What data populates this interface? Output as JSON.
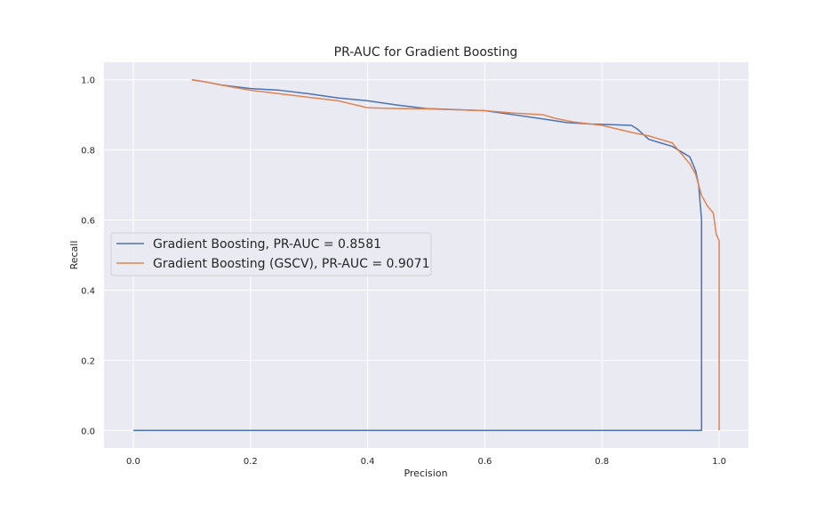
{
  "chart_data": {
    "type": "line",
    "title": "PR-AUC for Gradient Boosting",
    "xlabel": "Precision",
    "ylabel": "Recall",
    "xlim": [
      -0.05,
      1.05
    ],
    "ylim": [
      -0.05,
      1.05
    ],
    "xticks": [
      "0.0",
      "0.2",
      "0.4",
      "0.6",
      "0.8",
      "1.0"
    ],
    "yticks": [
      "0.0",
      "0.2",
      "0.4",
      "0.6",
      "0.8",
      "1.0"
    ],
    "grid": true,
    "legend_position": "center-left",
    "series": [
      {
        "name": "Gradient Boosting, PR-AUC = 0.8581",
        "color": "#4c72b0",
        "points": [
          [
            0.0,
            0.0
          ],
          [
            0.97,
            0.0
          ],
          [
            0.97,
            0.6
          ],
          [
            0.965,
            0.7
          ],
          [
            0.96,
            0.74
          ],
          [
            0.955,
            0.76
          ],
          [
            0.95,
            0.78
          ],
          [
            0.94,
            0.79
          ],
          [
            0.92,
            0.81
          ],
          [
            0.9,
            0.82
          ],
          [
            0.88,
            0.83
          ],
          [
            0.86,
            0.86
          ],
          [
            0.85,
            0.87
          ],
          [
            0.8,
            0.873
          ],
          [
            0.78,
            0.874
          ],
          [
            0.74,
            0.878
          ],
          [
            0.7,
            0.888
          ],
          [
            0.65,
            0.9
          ],
          [
            0.6,
            0.912
          ],
          [
            0.5,
            0.918
          ],
          [
            0.45,
            0.928
          ],
          [
            0.4,
            0.94
          ],
          [
            0.35,
            0.948
          ],
          [
            0.3,
            0.96
          ],
          [
            0.25,
            0.97
          ],
          [
            0.2,
            0.975
          ],
          [
            0.15,
            0.985
          ],
          [
            0.12,
            0.995
          ],
          [
            0.1,
            1.0
          ]
        ]
      },
      {
        "name": "Gradient Boosting (GSCV), PR-AUC = 0.9071",
        "color": "#dd8452",
        "points": [
          [
            1.0,
            0.0
          ],
          [
            1.0,
            0.54
          ],
          [
            0.995,
            0.56
          ],
          [
            0.99,
            0.62
          ],
          [
            0.98,
            0.64
          ],
          [
            0.97,
            0.67
          ],
          [
            0.965,
            0.7
          ],
          [
            0.96,
            0.73
          ],
          [
            0.95,
            0.76
          ],
          [
            0.94,
            0.78
          ],
          [
            0.93,
            0.8
          ],
          [
            0.92,
            0.82
          ],
          [
            0.9,
            0.83
          ],
          [
            0.88,
            0.84
          ],
          [
            0.85,
            0.85
          ],
          [
            0.8,
            0.87
          ],
          [
            0.75,
            0.88
          ],
          [
            0.72,
            0.89
          ],
          [
            0.7,
            0.9
          ],
          [
            0.65,
            0.905
          ],
          [
            0.6,
            0.912
          ],
          [
            0.5,
            0.917
          ],
          [
            0.45,
            0.918
          ],
          [
            0.4,
            0.92
          ],
          [
            0.35,
            0.94
          ],
          [
            0.3,
            0.95
          ],
          [
            0.25,
            0.96
          ],
          [
            0.2,
            0.97
          ],
          [
            0.15,
            0.985
          ],
          [
            0.12,
            0.995
          ],
          [
            0.1,
            1.0
          ]
        ]
      }
    ]
  }
}
